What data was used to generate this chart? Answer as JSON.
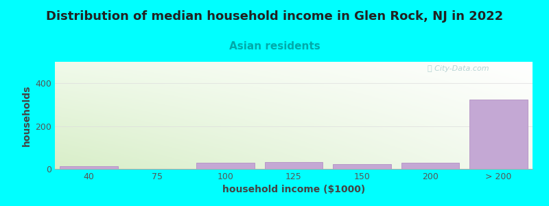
{
  "title": "Distribution of median household income in Glen Rock, NJ in 2022",
  "subtitle": "Asian residents",
  "xlabel": "household income ($1000)",
  "ylabel": "households",
  "background_color": "#00FFFF",
  "bar_color": "#c4a8d4",
  "bar_edge_color": "#b898c8",
  "categories": [
    "40",
    "75",
    "100",
    "125",
    "150",
    "200",
    "> 200"
  ],
  "values": [
    13,
    0,
    28,
    32,
    22,
    30,
    325
  ],
  "ylim": [
    0,
    500
  ],
  "yticks": [
    0,
    200,
    400
  ],
  "title_fontsize": 13,
  "subtitle_fontsize": 11,
  "subtitle_color": "#00aaaa",
  "axis_label_fontsize": 10,
  "tick_fontsize": 9,
  "watermark_text": "ⓘ City-Data.com",
  "watermark_color": "#aacccc",
  "bar_width": 0.85,
  "gradient_colors": [
    "#d8eec8",
    "#f4faf0"
  ],
  "grid_color": "#dddddd"
}
